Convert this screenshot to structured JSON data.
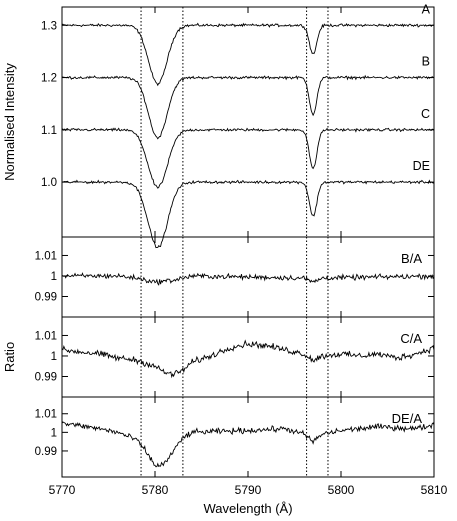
{
  "colors": {
    "line": "#000000",
    "axis": "#000000",
    "background": "#ffffff"
  },
  "chart_data": [
    {
      "type": "line",
      "ylabel": "Normalised Intensity",
      "xlim": [
        5770,
        5810
      ],
      "ylim": [
        0.895,
        1.335
      ],
      "yticks": [
        1.0,
        1.1,
        1.2,
        1.3
      ],
      "ytick_labels": [
        "1.0",
        "1.1",
        "1.2",
        "1.3"
      ],
      "xticks": [
        5770,
        5780,
        5790,
        5800,
        5810
      ],
      "xtick_labels": [
        "5770",
        "5780",
        "5790",
        "5800",
        "5810"
      ],
      "series": [
        {
          "name": "A",
          "baseline": 1.3,
          "absorption_lines": [
            {
              "center": 5780.3,
              "depth": 0.112,
              "width": 1.0
            },
            {
              "center": 5797.0,
              "depth": 0.055,
              "width": 0.4
            }
          ]
        },
        {
          "name": "B",
          "baseline": 1.2,
          "absorption_lines": [
            {
              "center": 5780.3,
              "depth": 0.115,
              "width": 1.0
            },
            {
              "center": 5797.0,
              "depth": 0.07,
              "width": 0.4
            }
          ]
        },
        {
          "name": "C",
          "baseline": 1.1,
          "absorption_lines": [
            {
              "center": 5780.3,
              "depth": 0.11,
              "width": 1.05
            },
            {
              "center": 5797.0,
              "depth": 0.075,
              "width": 0.4
            }
          ]
        },
        {
          "name": "DE",
          "baseline": 1.0,
          "absorption_lines": [
            {
              "center": 5780.3,
              "depth": 0.125,
              "width": 1.05
            },
            {
              "center": 5797.0,
              "depth": 0.065,
              "width": 0.4
            }
          ]
        }
      ],
      "vertical_dotted_lines": [
        5778.5,
        5783.0,
        5796.3,
        5798.6
      ]
    },
    {
      "type": "line",
      "series": [
        {
          "name": "B/A"
        }
      ],
      "ylim": [
        0.98,
        1.019
      ],
      "yticks": [
        0.99,
        1.0,
        1.01
      ],
      "ytick_labels": [
        "0.99",
        "1",
        "1.01"
      ],
      "profile": [
        [
          5770,
          1.0
        ],
        [
          5776,
          1.0
        ],
        [
          5778,
          0.999
        ],
        [
          5780,
          0.997
        ],
        [
          5782,
          0.998
        ],
        [
          5784,
          1.0
        ],
        [
          5796,
          0.999
        ],
        [
          5797,
          0.997
        ],
        [
          5798,
          0.999
        ],
        [
          5810,
          1.0
        ]
      ],
      "noise": 0.0012
    },
    {
      "type": "line",
      "series": [
        {
          "name": "C/A"
        }
      ],
      "ylabel": "Ratio",
      "ylim": [
        0.98,
        1.019
      ],
      "yticks": [
        0.99,
        1.0,
        1.01
      ],
      "ytick_labels": [
        "0.99",
        "1",
        "1.01"
      ],
      "profile": [
        [
          5770,
          1.003
        ],
        [
          5774,
          1.001
        ],
        [
          5776,
          0.999
        ],
        [
          5778,
          0.998
        ],
        [
          5780,
          0.995
        ],
        [
          5781,
          0.992
        ],
        [
          5782,
          0.991
        ],
        [
          5783,
          0.993
        ],
        [
          5784,
          0.997
        ],
        [
          5786,
          1.0
        ],
        [
          5788,
          1.004
        ],
        [
          5790,
          1.006
        ],
        [
          5792,
          1.005
        ],
        [
          5794,
          1.003
        ],
        [
          5796,
          1.001
        ],
        [
          5797,
          0.998
        ],
        [
          5798,
          1.0
        ],
        [
          5800,
          1.001
        ],
        [
          5802,
          1.0
        ],
        [
          5804,
          1.001
        ],
        [
          5806,
          0.999
        ],
        [
          5808,
          1.001
        ],
        [
          5810,
          1.004
        ]
      ],
      "noise": 0.0015
    },
    {
      "type": "line",
      "series": [
        {
          "name": "DE/A"
        }
      ],
      "xlabel": "Wavelength (Å)",
      "ylim": [
        0.976,
        1.019
      ],
      "yticks": [
        0.99,
        1.0,
        1.01
      ],
      "ytick_labels": [
        "0.99",
        "1",
        "1.01"
      ],
      "xticks": [
        5770,
        5780,
        5790,
        5800,
        5810
      ],
      "xtick_labels": [
        "5770",
        "5780",
        "5790",
        "5800",
        "5810"
      ],
      "profile": [
        [
          5770,
          1.005
        ],
        [
          5774,
          1.002
        ],
        [
          5776,
          1.0
        ],
        [
          5778,
          0.996
        ],
        [
          5779,
          0.99
        ],
        [
          5780,
          0.982
        ],
        [
          5781,
          0.983
        ],
        [
          5782,
          0.99
        ],
        [
          5783,
          0.997
        ],
        [
          5784,
          1.0
        ],
        [
          5790,
          1.001
        ],
        [
          5794,
          1.002
        ],
        [
          5796,
          0.999
        ],
        [
          5797,
          0.995
        ],
        [
          5798,
          0.999
        ],
        [
          5800,
          1.001
        ],
        [
          5804,
          1.003
        ],
        [
          5808,
          1.002
        ],
        [
          5810,
          1.004
        ]
      ],
      "noise": 0.0015
    }
  ]
}
